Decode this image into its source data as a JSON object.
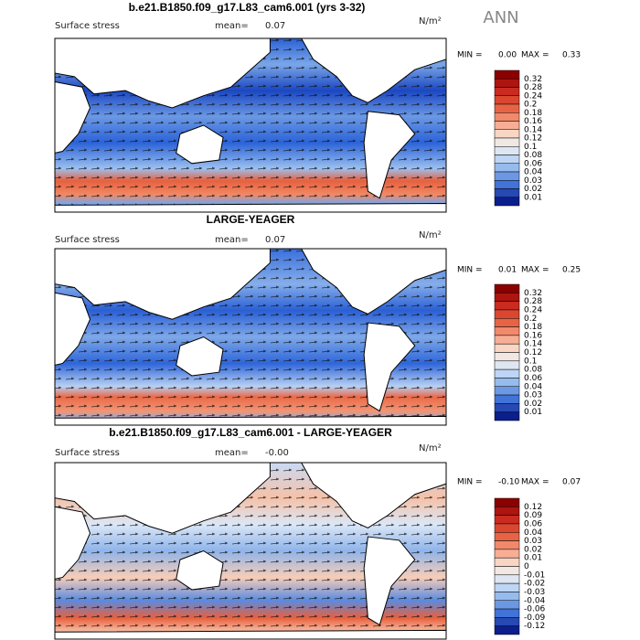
{
  "title": "b.e21.B1850.f09_g17.L83_cam6.001 (yrs 3-32)",
  "season": "ANN",
  "panels": [
    {
      "field": "Surface stress",
      "mean_label": "mean=",
      "mean": "0.07",
      "units": "N/m²",
      "min_label": "MIN =",
      "min": "0.00",
      "max_label": "MAX =",
      "max": "0.33",
      "levels": [
        "0.32",
        "0.28",
        "0.24",
        "0.2",
        "0.18",
        "0.16",
        "0.14",
        "0.12",
        "0.1",
        "0.08",
        "0.06",
        "0.04",
        "0.03",
        "0.02",
        "0.01"
      ]
    },
    {
      "title": "LARGE-YEAGER",
      "field": "Surface stress",
      "mean_label": "mean=",
      "mean": "0.07",
      "units": "N/m²",
      "min_label": "MIN =",
      "min": "0.01",
      "max_label": "MAX =",
      "max": "0.25",
      "levels": [
        "0.32",
        "0.28",
        "0.24",
        "0.2",
        "0.18",
        "0.16",
        "0.14",
        "0.12",
        "0.1",
        "0.08",
        "0.06",
        "0.04",
        "0.03",
        "0.02",
        "0.01"
      ]
    },
    {
      "title": "b.e21.B1850.f09_g17.L83_cam6.001 - LARGE-YEAGER",
      "field": "Surface stress",
      "mean_label": "mean=",
      "mean": "-0.00",
      "units": "N/m²",
      "min_label": "MIN =",
      "min": "-0.10",
      "max_label": "MAX =",
      "max": "0.07",
      "levels": [
        "0.12",
        "0.09",
        "0.06",
        "0.04",
        "0.03",
        "0.02",
        "0.01",
        "0",
        "-0.01",
        "-0.02",
        "-0.03",
        "-0.04",
        "-0.06",
        "-0.09",
        "-0.12"
      ]
    }
  ]
}
